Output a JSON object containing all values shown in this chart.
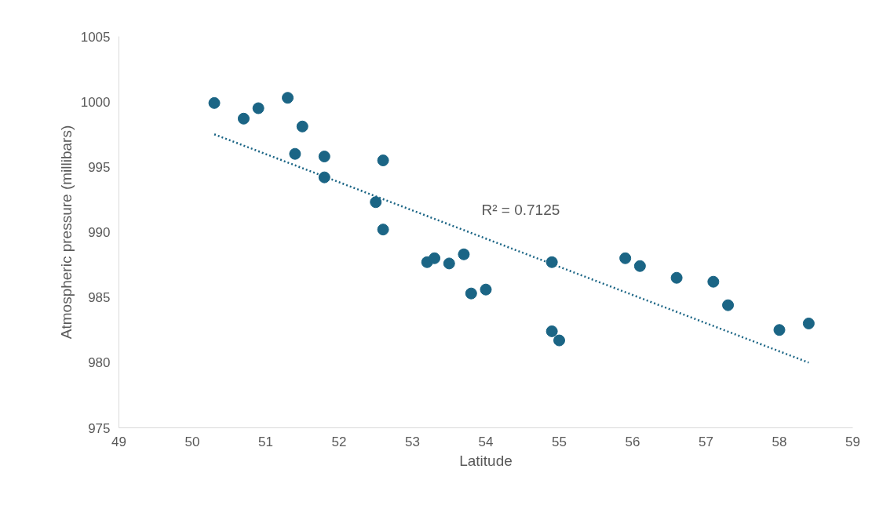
{
  "chart_data": {
    "type": "scatter",
    "xlabel": "Latitude",
    "ylabel": "Atmospheric pressure (millibars)",
    "series": [
      {
        "marker": "circle",
        "color": "#1b6585",
        "x": [
          50.3,
          50.7,
          50.9,
          51.3,
          51.5,
          51.4,
          51.8,
          51.8,
          52.6,
          52.5,
          52.6,
          53.2,
          53.3,
          53.5,
          53.7,
          53.8,
          54.0,
          54.9,
          54.9,
          55.0,
          55.9,
          56.1,
          56.6,
          57.1,
          57.3,
          58.0,
          58.4
        ],
        "values": [
          999.9,
          998.7,
          999.5,
          1000.3,
          998.1,
          996.0,
          995.8,
          994.2,
          995.5,
          992.3,
          990.2,
          987.7,
          988.0,
          987.6,
          988.3,
          985.3,
          985.6,
          987.7,
          982.4,
          981.7,
          988.0,
          987.4,
          986.5,
          986.2,
          984.4,
          982.5,
          983.0
        ]
      },
      {
        "type": "line",
        "color": "#1b6585",
        "line_style": "dotted",
        "x": [
          50.3,
          58.4
        ],
        "values": [
          997.5,
          980.0
        ]
      }
    ],
    "annotations": [
      "R² = 0.7125"
    ],
    "xlim": [
      49,
      59
    ],
    "xticks": [
      49,
      50,
      51,
      52,
      53,
      54,
      55,
      56,
      57,
      58,
      59
    ],
    "ylim": [
      975,
      1005
    ],
    "yticks": [
      975,
      980,
      985,
      990,
      995,
      1000,
      1005
    ],
    "grid": false
  }
}
